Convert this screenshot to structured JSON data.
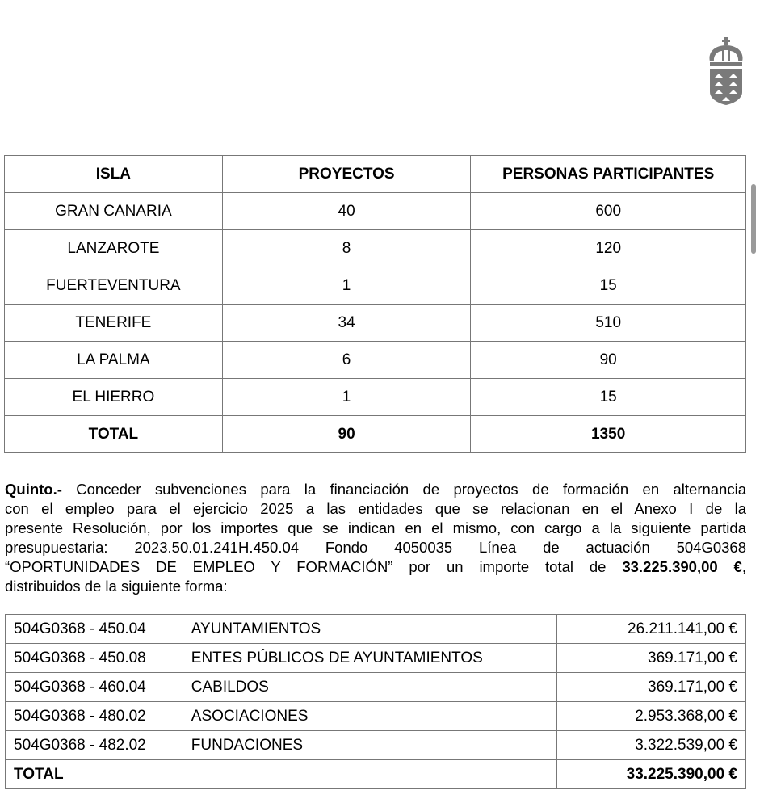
{
  "logo": {
    "name": "canarias-coat-of-arms",
    "color": "#7a7a7a"
  },
  "table1": {
    "headers": [
      "ISLA",
      "PROYECTOS",
      "PERSONAS PARTICIPANTES"
    ],
    "rows": [
      [
        "GRAN CANARIA",
        "40",
        "600"
      ],
      [
        "LANZAROTE",
        "8",
        "120"
      ],
      [
        "FUERTEVENTURA",
        "1",
        "15"
      ],
      [
        "TENERIFE",
        "34",
        "510"
      ],
      [
        "LA PALMA",
        "6",
        "90"
      ],
      [
        "EL HIERRO",
        "1",
        "15"
      ]
    ],
    "total": [
      "TOTAL",
      "90",
      "1350"
    ]
  },
  "paragraph": {
    "l1_bold": "Quinto.-",
    "l1": " Conceder subvenciones para la financiación de proyectos de formación en alternancia",
    "l2a": "con el empleo para el ejercicio 2025 a las entidades que se relacionan en el ",
    "l2_link": "Anexo I",
    "l2b": " de la",
    "l3": "presente Resolución, por los importes que se indican en el mismo, con cargo a la siguiente partida",
    "l4": "presupuestaria: 2023.50.01.241H.450.04 Fondo 4050035 Línea de actuación 504G0368",
    "l5a": "“OPORTUNIDADES DE EMPLEO Y FORMACIÓN” por un importe total de ",
    "l5_bold": "33.225.390,00 €",
    "l5b": ",",
    "l6": "distribuidos de la siguiente forma:"
  },
  "table2": {
    "rows": [
      [
        "504G0368 - 450.04",
        "AYUNTAMIENTOS",
        "26.211.141,00 €"
      ],
      [
        "504G0368 - 450.08",
        "ENTES PÚBLICOS DE AYUNTAMIENTOS",
        "369.171,00 €"
      ],
      [
        "504G0368 - 460.04",
        "CABILDOS",
        "369.171,00 €"
      ],
      [
        "504G0368 - 480.02",
        "ASOCIACIONES",
        "2.953.368,00 €"
      ],
      [
        "504G0368 - 482.02",
        "FUNDACIONES",
        "3.322.539,00 €"
      ]
    ],
    "total": [
      "TOTAL",
      "",
      "33.225.390,00 €"
    ]
  }
}
